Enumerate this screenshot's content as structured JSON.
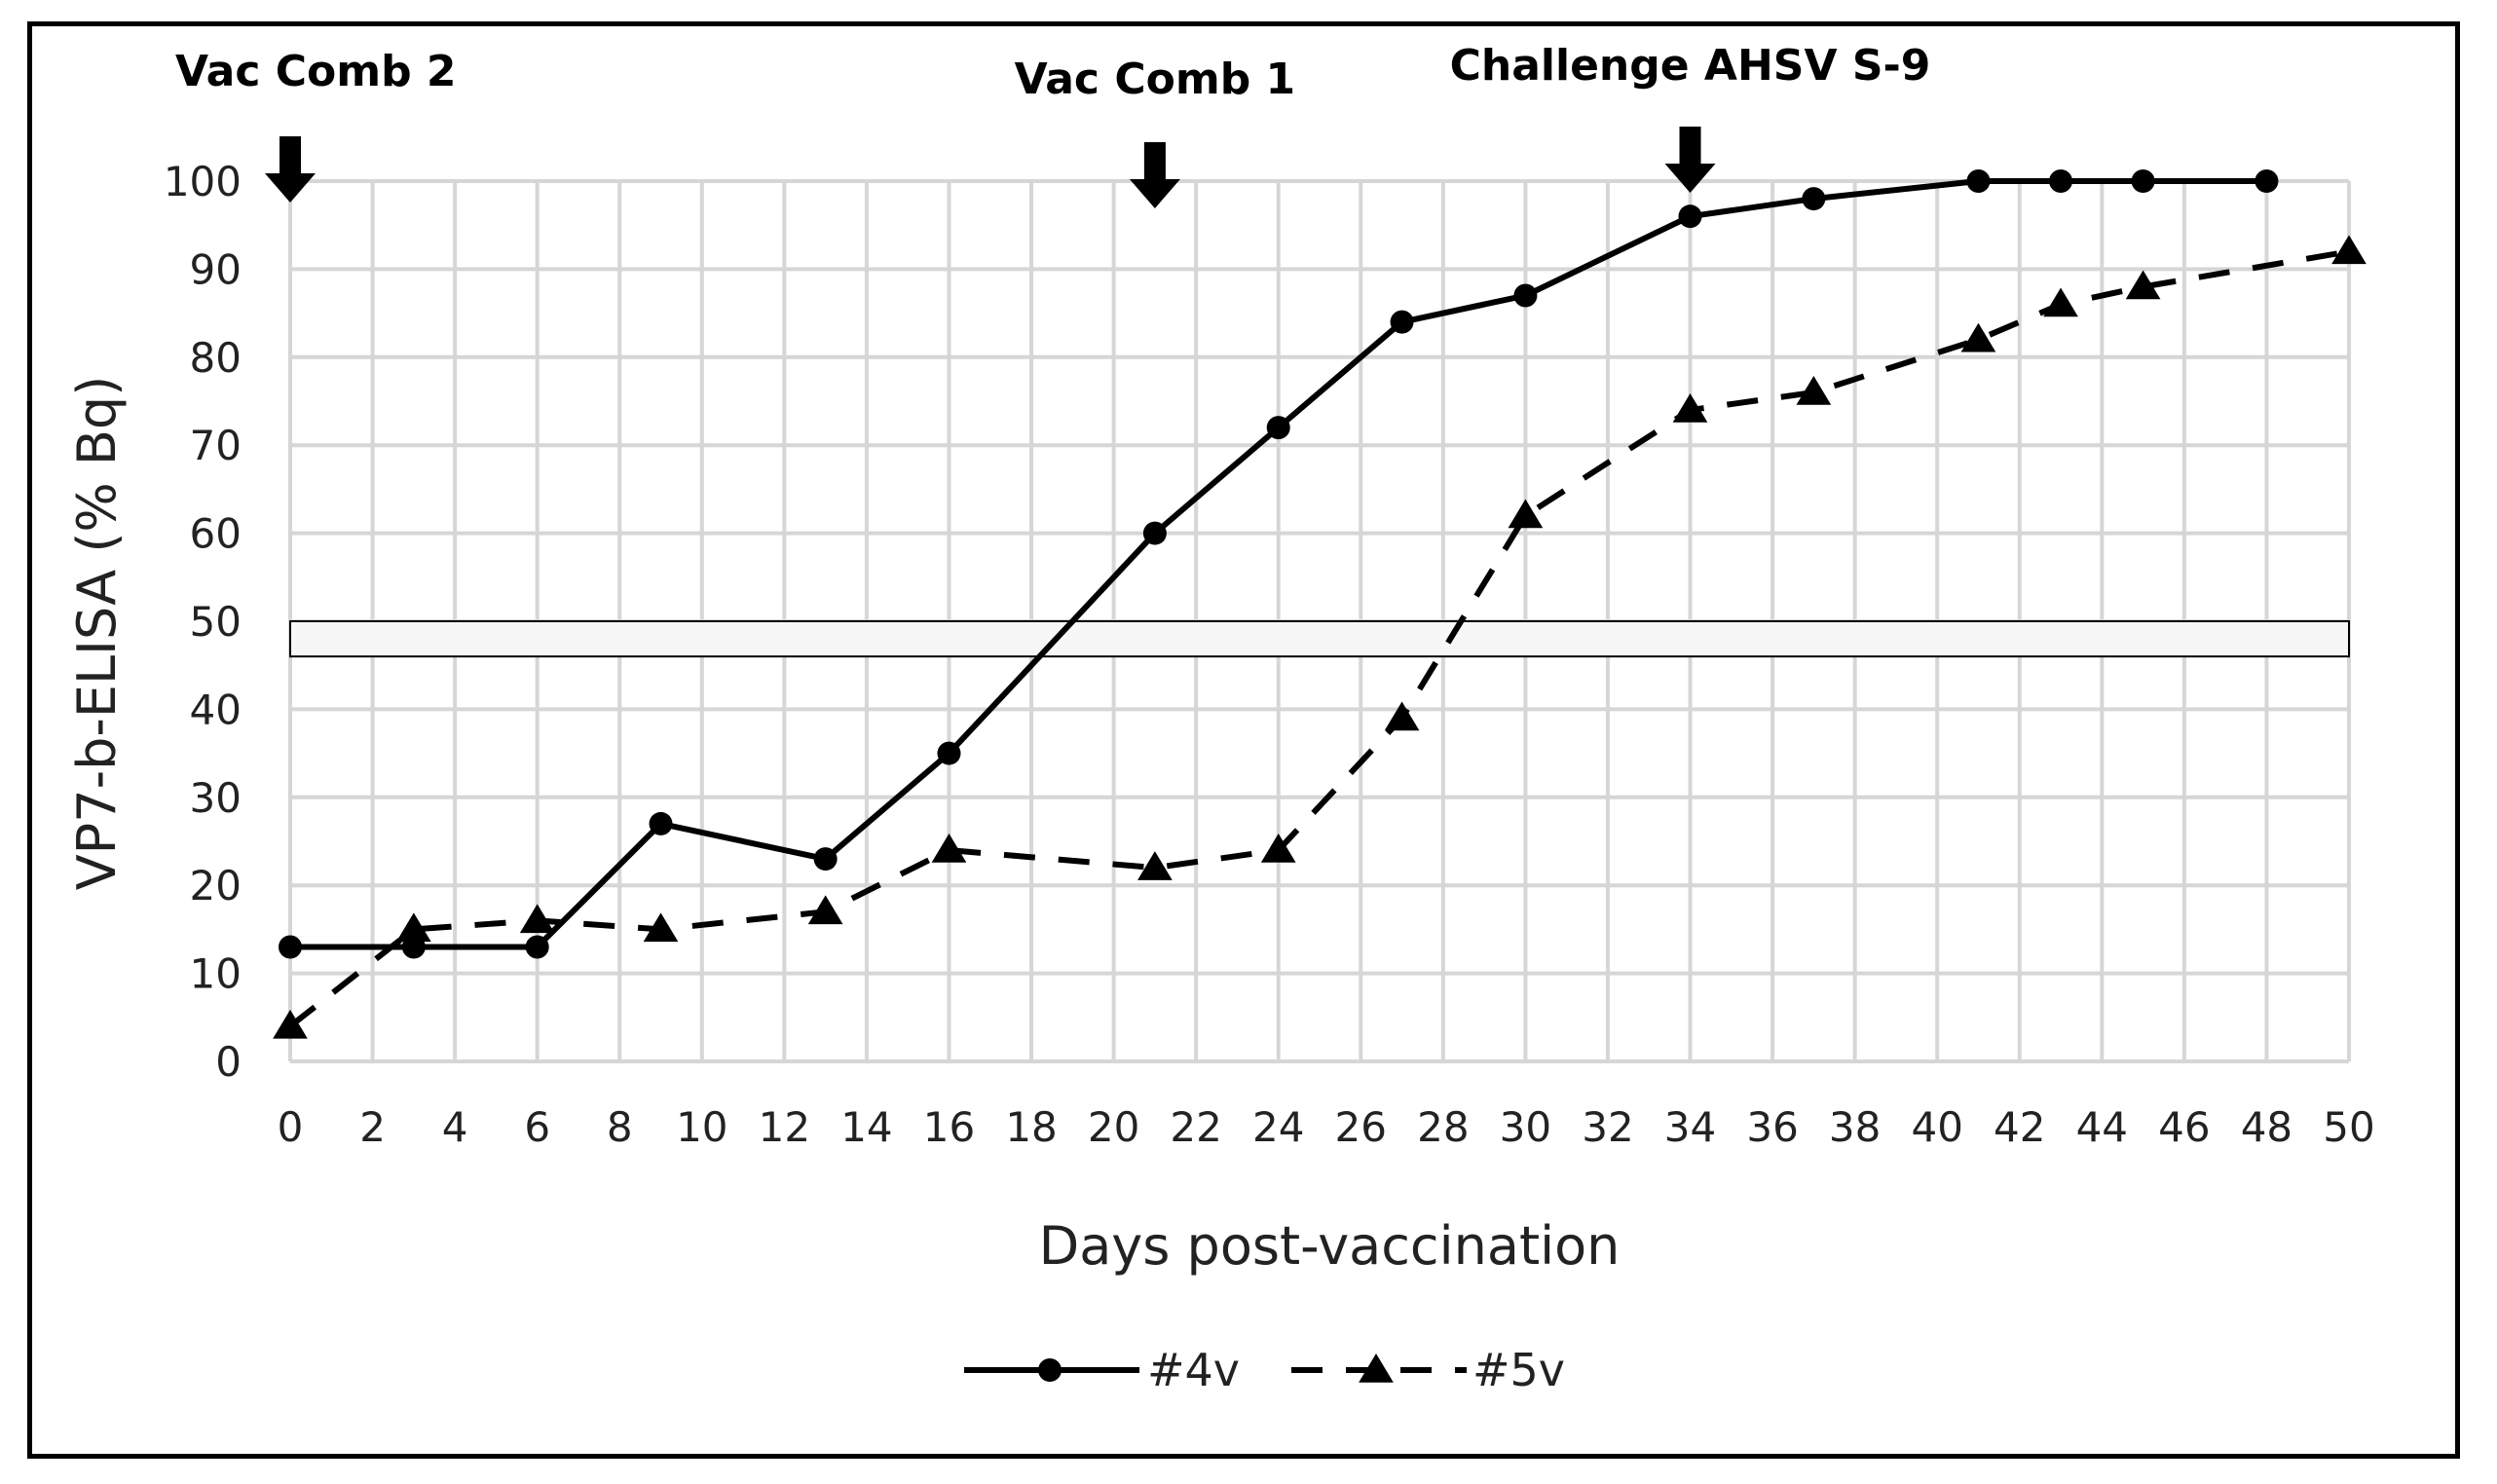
{
  "chart_data": {
    "type": "line",
    "xlabel": "Days post-vaccination",
    "ylabel": "VP7-b-ELISA (% Bq)",
    "xlim": [
      0,
      50
    ],
    "ylim": [
      0,
      100
    ],
    "x_ticks": [
      0,
      2,
      4,
      6,
      8,
      10,
      12,
      14,
      16,
      18,
      20,
      22,
      24,
      26,
      28,
      30,
      32,
      34,
      36,
      38,
      40,
      42,
      44,
      46,
      48,
      50
    ],
    "y_ticks": [
      0,
      10,
      20,
      30,
      40,
      50,
      60,
      70,
      80,
      90,
      100
    ],
    "grid": true,
    "legend_position": "bottom",
    "series": [
      {
        "name": "#4v",
        "line_style": "solid",
        "marker": "circle",
        "color": "#000000",
        "x": [
          0,
          3,
          6,
          9,
          13,
          16,
          21,
          24,
          27,
          30,
          34,
          37,
          41,
          43,
          45,
          48
        ],
        "y": [
          13,
          13,
          13,
          27,
          23,
          35,
          60,
          72,
          84,
          87,
          96,
          98,
          100,
          100,
          100,
          100
        ]
      },
      {
        "name": "#5v",
        "line_style": "dashed",
        "marker": "triangle",
        "color": "#000000",
        "x": [
          0,
          3,
          6,
          9,
          13,
          16,
          21,
          24,
          27,
          30,
          34,
          37,
          41,
          43,
          45,
          50
        ],
        "y": [
          4,
          15,
          16,
          15,
          17,
          24,
          22,
          24,
          39,
          62,
          74,
          76,
          82,
          86,
          88,
          92
        ]
      }
    ],
    "band": {
      "y_low": 46,
      "y_high": 50,
      "fill": "#f7f7f7"
    },
    "annotations": [
      {
        "label": "Vac Comb 2",
        "x": 0
      },
      {
        "label": "Vac Comb 1",
        "x": 21
      },
      {
        "label": "Challenge AHSV S-9",
        "x": 34
      }
    ]
  }
}
